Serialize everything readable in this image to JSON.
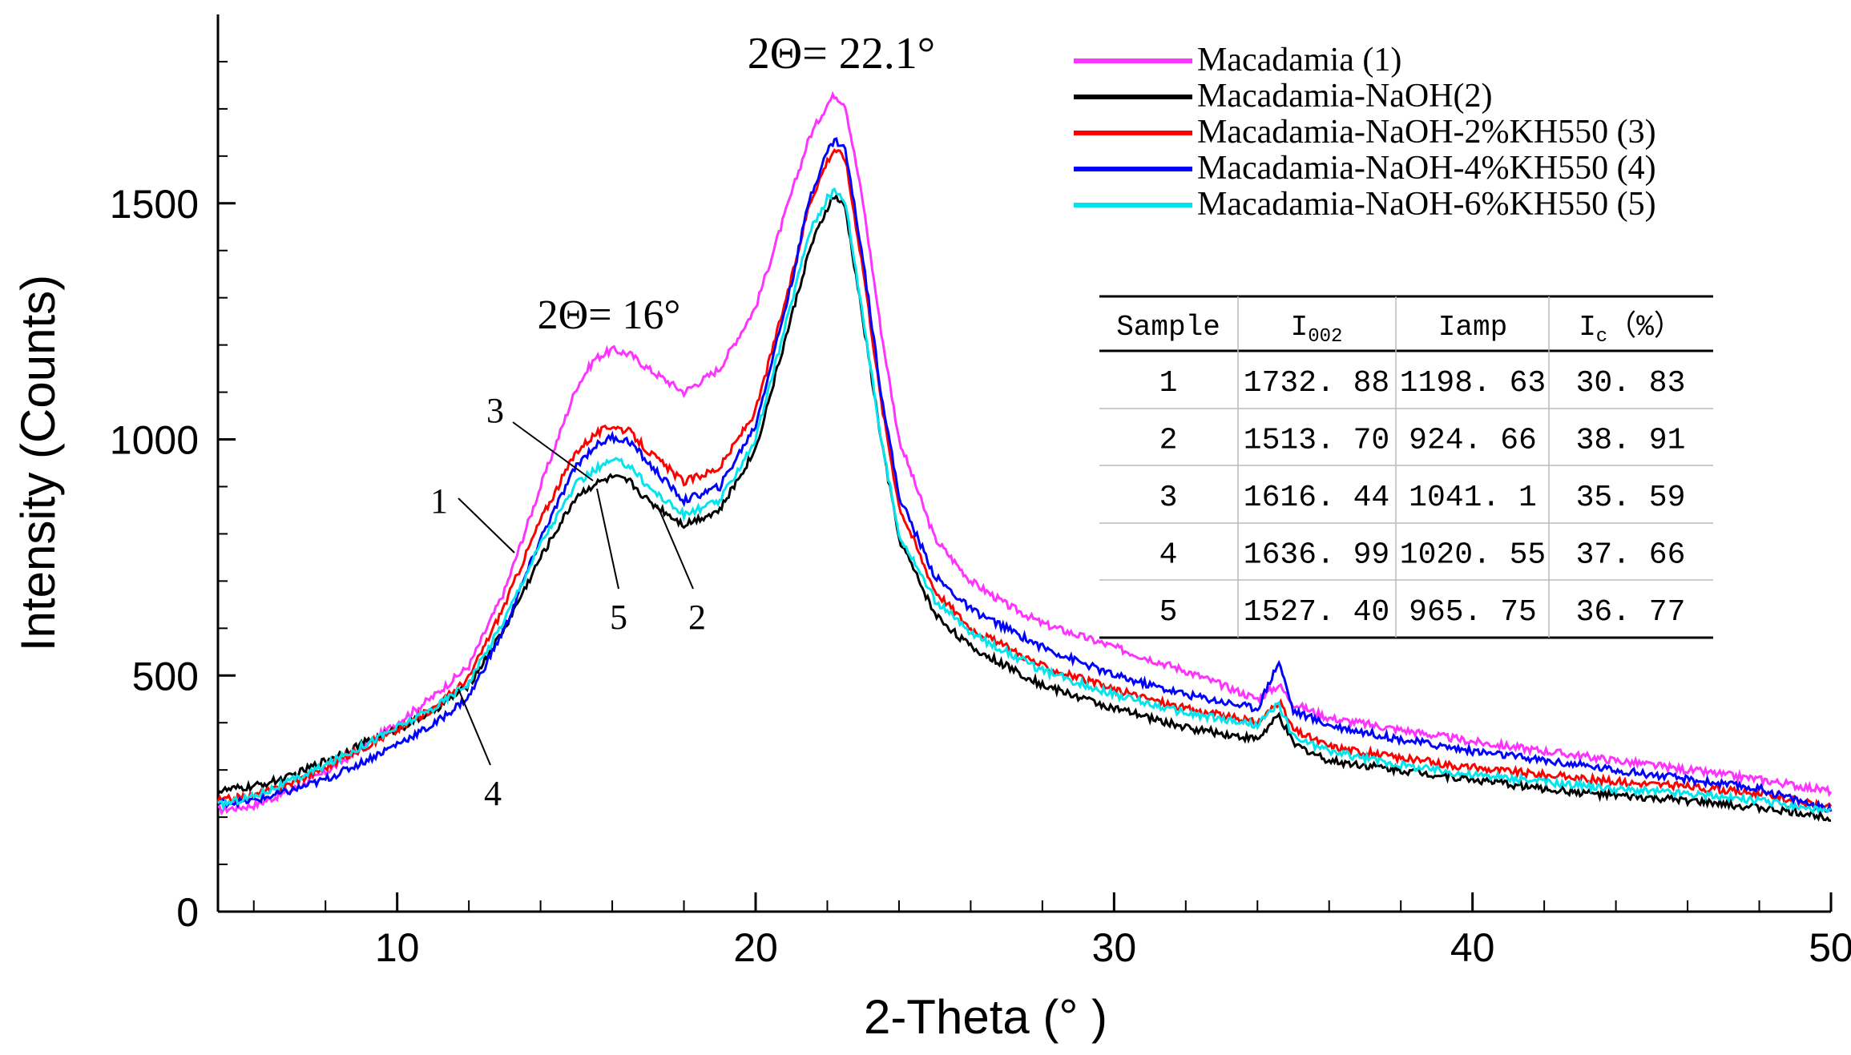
{
  "chart_data": {
    "type": "line",
    "title": "",
    "xlabel": "2-Theta (° )",
    "ylabel": "Intensity (Counts)",
    "xlim": [
      5,
      50
    ],
    "ylim": [
      0,
      1900
    ],
    "x_ticks": [
      10,
      20,
      30,
      40,
      50
    ],
    "x_tick_labels": [
      "10",
      "20",
      "30",
      "40",
      "50"
    ],
    "y_ticks": [
      0,
      500,
      1000,
      1500
    ],
    "y_tick_labels": [
      "0",
      "500",
      "1000",
      "1500"
    ],
    "grid": false,
    "legend_position": "top-right",
    "x": [
      5,
      6,
      7,
      8,
      9,
      10,
      11,
      12,
      13,
      14,
      15,
      15.5,
      16,
      16.5,
      17,
      18,
      19,
      20,
      21,
      21.5,
      22,
      22.2,
      22.5,
      23,
      23.5,
      24,
      25,
      26,
      27,
      28,
      30,
      32,
      34,
      34.6,
      35,
      36,
      38,
      40,
      42,
      44,
      46,
      48,
      50
    ],
    "series": [
      {
        "name": "Macadamia (1)",
        "color": "#ff33ff",
        "marker_label": "1",
        "values": [
          215,
          225,
          255,
          295,
          345,
          400,
          455,
          520,
          680,
          900,
          1110,
          1170,
          1190,
          1180,
          1150,
          1100,
          1150,
          1280,
          1520,
          1640,
          1710,
          1730,
          1710,
          1500,
          1230,
          1000,
          790,
          700,
          650,
          610,
          560,
          510,
          450,
          480,
          440,
          410,
          385,
          360,
          340,
          320,
          300,
          280,
          255
        ]
      },
      {
        "name": "Macadamia-NaOH(2)",
        "color": "#000000",
        "marker_label": "2",
        "values": [
          255,
          265,
          285,
          320,
          355,
          385,
          425,
          480,
          600,
          750,
          880,
          905,
          920,
          910,
          870,
          820,
          850,
          980,
          1260,
          1400,
          1490,
          1515,
          1490,
          1250,
          1000,
          790,
          630,
          560,
          520,
          480,
          430,
          390,
          365,
          415,
          355,
          320,
          300,
          280,
          260,
          245,
          235,
          220,
          200
        ]
      },
      {
        "name": "Macadamia-NaOH-2%KH550 (3)",
        "color": "#ff0000",
        "marker_label": "3",
        "values": [
          235,
          245,
          270,
          305,
          345,
          385,
          430,
          495,
          650,
          830,
          975,
          1010,
          1030,
          1015,
          975,
          910,
          940,
          1060,
          1340,
          1500,
          1590,
          1615,
          1595,
          1360,
          1080,
          860,
          680,
          600,
          560,
          520,
          470,
          430,
          400,
          445,
          385,
          350,
          325,
          305,
          290,
          275,
          265,
          250,
          220
        ]
      },
      {
        "name": "Macadamia-NaOH-4%KH550 (4)",
        "color": "#0000ff",
        "marker_label": "4",
        "values": [
          230,
          235,
          255,
          280,
          315,
          355,
          395,
          455,
          600,
          790,
          945,
          985,
          1005,
          995,
          950,
          870,
          900,
          1030,
          1330,
          1510,
          1610,
          1635,
          1615,
          1380,
          1100,
          880,
          710,
          640,
          600,
          560,
          500,
          460,
          430,
          530,
          425,
          395,
          365,
          340,
          320,
          300,
          280,
          260,
          215
        ]
      },
      {
        "name": "Macadamia-NaOH-6%KH550 (5)",
        "color": "#00e5ee",
        "marker_label": "5",
        "values": [
          225,
          245,
          275,
          310,
          350,
          390,
          430,
          485,
          620,
          780,
          905,
          935,
          955,
          945,
          900,
          840,
          870,
          1000,
          1290,
          1440,
          1510,
          1527,
          1505,
          1260,
          1000,
          800,
          660,
          590,
          550,
          510,
          460,
          420,
          395,
          440,
          370,
          340,
          310,
          290,
          275,
          260,
          250,
          235,
          210
        ]
      }
    ],
    "annotations": {
      "peak_main": "2Θ= 22.1°",
      "peak_secondary": "2Θ= 16°",
      "callouts": [
        "1",
        "2",
        "3",
        "4",
        "5"
      ]
    },
    "inset_table": {
      "headers": [
        "Sample",
        "I002",
        "Iamp",
        "Ic (%)"
      ],
      "header_parts": {
        "i002_main": "I",
        "i002_sub": "002",
        "ic_main": "I",
        "ic_sub": "c",
        "ic_rest": "（%）"
      },
      "rows": [
        [
          "1",
          "1732. 88",
          "1198. 63",
          "30. 83"
        ],
        [
          "2",
          "1513. 70",
          "924. 66",
          "38. 91"
        ],
        [
          "3",
          "1616. 44",
          "1041. 1",
          "35. 59"
        ],
        [
          "4",
          "1636. 99",
          "1020. 55",
          "37. 66"
        ],
        [
          "5",
          "1527. 40",
          "965. 75",
          "36. 77"
        ]
      ]
    }
  }
}
